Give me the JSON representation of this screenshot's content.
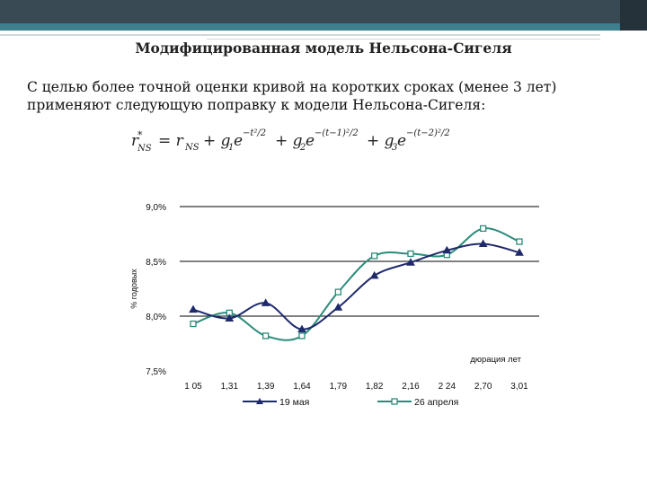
{
  "slide": {
    "title": "Модифицированная модель Нельсона-Сигеля",
    "body_line1": "С целью более точной оценки кривой на коротких сроках (менее 3 лет)",
    "body_line2": "применяют следующую поправку к модели Нельсона-Сигеля:"
  },
  "colors": {
    "topbar": "#3a4a54",
    "accent": "#3e7f8e",
    "series_may": "#1f2a6b",
    "series_april": "#2b8c7a"
  },
  "chart_data": {
    "type": "line",
    "categories": [
      "1 05",
      "1,31",
      "1,39",
      "1,64",
      "1,79",
      "1,82",
      "2,16",
      "2 24",
      "2,70",
      "3,01"
    ],
    "ylim": [
      7.5,
      9.0
    ],
    "yticks": [
      "9,0%",
      "8,5%",
      "8,0%",
      "7,5%"
    ],
    "ytick_values": [
      9.0,
      8.5,
      8.0,
      7.5
    ],
    "ylabel": "% годовых",
    "xlabel": "дюрация лет",
    "grid": true,
    "legend_position": "bottom",
    "series": [
      {
        "name": "19 мая",
        "marker": "triangle",
        "color": "#1f2a6b",
        "values": [
          8.06,
          7.98,
          8.12,
          7.88,
          8.08,
          8.37,
          8.49,
          8.6,
          8.66,
          8.58
        ]
      },
      {
        "name": "26 апреля",
        "marker": "square",
        "color": "#2b8c7a",
        "values": [
          7.93,
          8.03,
          7.82,
          7.82,
          8.22,
          8.55,
          8.57,
          8.56,
          8.8,
          8.68
        ]
      }
    ]
  }
}
